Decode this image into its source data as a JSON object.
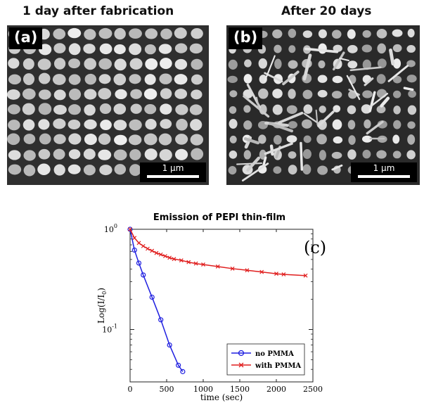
{
  "panels": {
    "a": {
      "title": "1 day after fabrication",
      "tag": "(a)",
      "scale_label": "1 µm"
    },
    "b": {
      "title": "After 20 days",
      "tag": "(b)",
      "scale_label": "1 µm"
    }
  },
  "chart_data": {
    "type": "line",
    "title": "Emission of PEPI thin-film",
    "panel_label": "(c)",
    "xlabel": "time (sec)",
    "ylabel": "Log(I/I0)",
    "xlim": [
      0,
      2500
    ],
    "ylim": [
      0.03,
      1
    ],
    "yscale": "log",
    "x_ticks": [
      "0",
      "500",
      "1000",
      "1500",
      "2000",
      "2500"
    ],
    "y_ticks": [
      {
        "value": 1,
        "base": "10",
        "exp": "0"
      },
      {
        "value": 0.1,
        "base": "10",
        "exp": "-1"
      }
    ],
    "legend_position": "bottom-right",
    "series": [
      {
        "name": "no PMMA",
        "color": "#1f1fe0",
        "marker": "circle",
        "x": [
          0,
          60,
          120,
          180,
          300,
          420,
          540,
          660,
          720
        ],
        "y": [
          1.0,
          0.62,
          0.46,
          0.35,
          0.21,
          0.125,
          0.07,
          0.044,
          0.038
        ]
      },
      {
        "name": "with PMMA",
        "color": "#e01f1f",
        "marker": "x",
        "x": [
          0,
          60,
          120,
          180,
          240,
          300,
          360,
          420,
          480,
          540,
          600,
          700,
          800,
          900,
          1000,
          1200,
          1400,
          1600,
          1800,
          2000,
          2100,
          2400
        ],
        "y": [
          1.0,
          0.82,
          0.73,
          0.68,
          0.64,
          0.61,
          0.58,
          0.56,
          0.54,
          0.52,
          0.505,
          0.49,
          0.47,
          0.455,
          0.445,
          0.425,
          0.405,
          0.39,
          0.375,
          0.36,
          0.355,
          0.345
        ]
      }
    ]
  }
}
